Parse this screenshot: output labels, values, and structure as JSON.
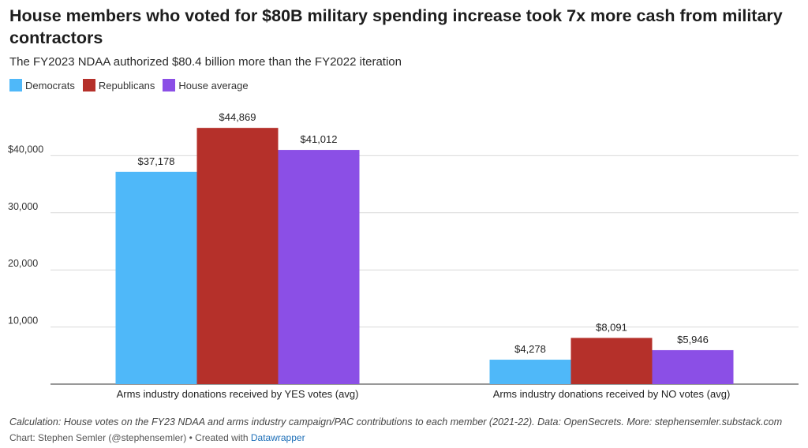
{
  "chart_data": {
    "type": "bar",
    "title": "House members who voted for $80B military spending increase took 7x more cash from military contractors",
    "subtitle": "The FY2023 NDAA authorized $80.4 billion more than the FY2022 iteration",
    "categories": [
      "Arms industry donations received by YES votes (avg)",
      "Arms industry donations received by NO votes (avg)"
    ],
    "series": [
      {
        "name": "Democrats",
        "color": "#4fb8f9",
        "values": [
          37178,
          4278
        ],
        "labels": [
          "$37,178",
          "$4,278"
        ]
      },
      {
        "name": "Republicans",
        "color": "#b5302a",
        "values": [
          44869,
          8091
        ],
        "labels": [
          "$44,869",
          "$8,091"
        ]
      },
      {
        "name": "House average",
        "color": "#8b4fe6",
        "values": [
          41012,
          5946
        ],
        "labels": [
          "$41,012",
          "$5,946"
        ]
      }
    ],
    "yticks": [
      {
        "value": 10000,
        "label": "10,000"
      },
      {
        "value": 20000,
        "label": "20,000"
      },
      {
        "value": 30000,
        "label": "30,000"
      },
      {
        "value": 40000,
        "label": "$40,000"
      }
    ],
    "ylim": [
      0,
      50000
    ],
    "grid": true,
    "legend_position": "top-left"
  },
  "footer": {
    "note": "Calculation: House votes on the FY23 NDAA and arms industry campaign/PAC contributions to each member (2021-22). Data: OpenSecrets. More: stephensemler.substack.com",
    "credit": "Chart: Stephen Semler (@stephensemler) • Created with ",
    "credit_link": "Datawrapper"
  }
}
